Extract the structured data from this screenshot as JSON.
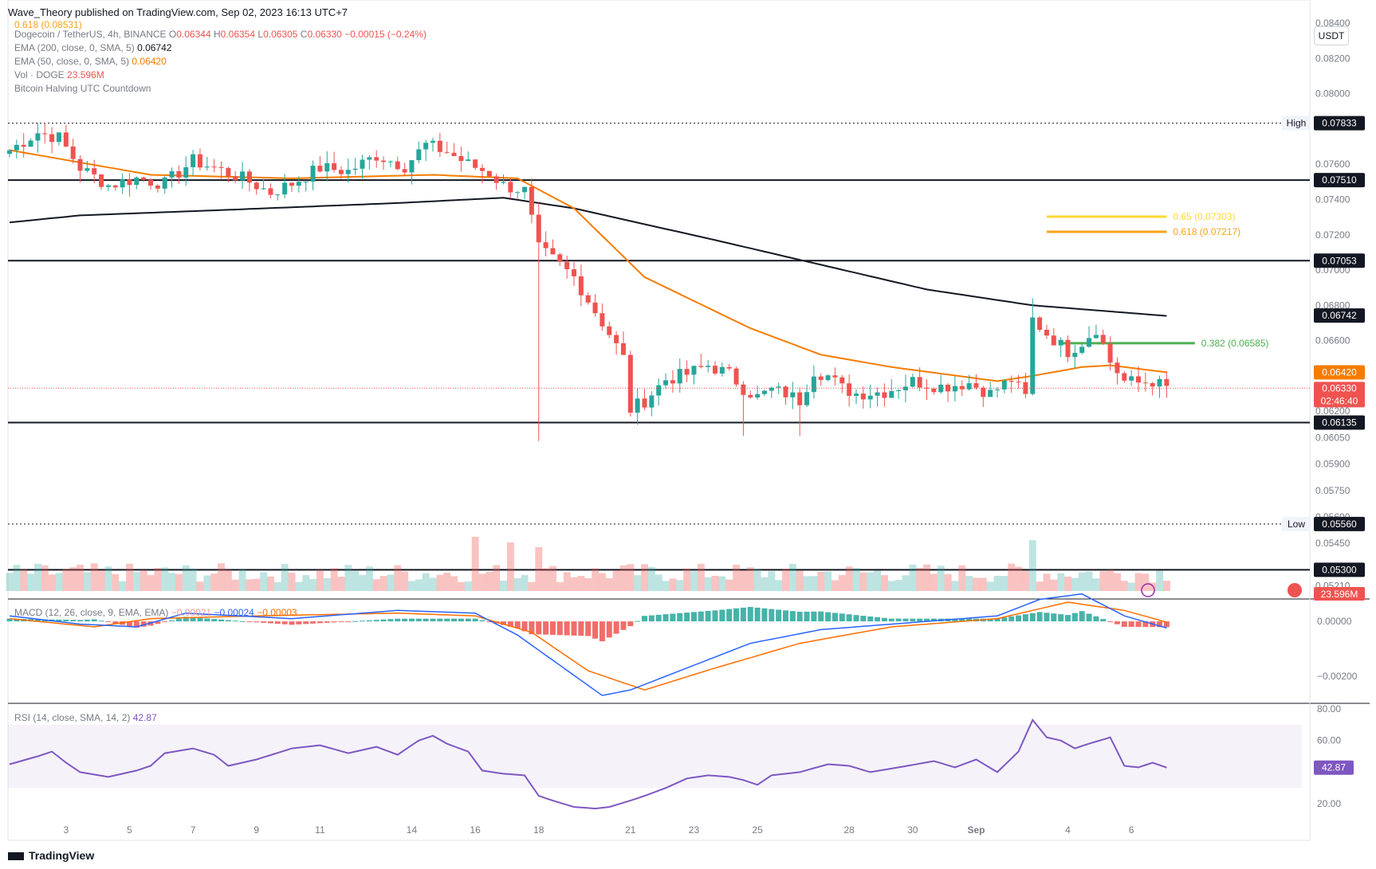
{
  "header": {
    "published": "Wave_Theory published on TradingView.com, Sep 02, 2023 16:13 UTC+7",
    "quote_currency": "USDT",
    "footer_brand": "TradingView"
  },
  "legend": {
    "fib_top": "0.618 (0.08531)",
    "symbol": "Dogecoin / TetherUS, 4h, BINANCE",
    "ohlc": {
      "o_label": "O",
      "o": "0.06344",
      "h_label": "H",
      "h": "0.06354",
      "l_label": "L",
      "l": "0.06305",
      "c_label": "C",
      "c": "0.06330",
      "chg": "−0.00015 (−0.24%)"
    },
    "ema200": {
      "label": "EMA (200, close, 0, SMA, 5)",
      "value": "0.06742"
    },
    "ema50": {
      "label": "EMA (50, close, 0, SMA, 5)",
      "value": "0.06420"
    },
    "vol": {
      "label": "Vol · DOGE",
      "value": "23.596M"
    },
    "halving": "Bitcoin Halving UTC Countdown"
  },
  "colors": {
    "up": "#26a69a",
    "down": "#ef5350",
    "ema50": "#f57c00",
    "ema200": "#131722",
    "fib382": "#4caf50",
    "fib618": "#f7a21b",
    "fib65": "#fdd835",
    "rsi": "#7e57c2",
    "macd": "#2962ff",
    "signal": "#ff6d00"
  },
  "chart_data": [
    {
      "type": "candlestick",
      "title": "Dogecoin / TetherUS, 4h, BINANCE",
      "x_tick_labels": [
        "3",
        "5",
        "7",
        "9",
        "11",
        "14",
        "16",
        "18",
        "21",
        "23",
        "25",
        "28",
        "30",
        "Sep",
        "4",
        "6"
      ],
      "y_tick_labels": [
        "0.08400",
        "0.08200",
        "0.08000",
        "0.07600",
        "0.07400",
        "0.07200",
        "0.07000",
        "0.06800",
        "0.06600",
        "0.06200",
        "0.06050",
        "0.05900",
        "0.05750",
        "0.05600",
        "0.05450",
        "0.05300",
        "0.05210"
      ],
      "ylim": [
        0.0518,
        0.0845
      ],
      "price_keypoints": [
        [
          0,
          0.0768
        ],
        [
          4,
          0.0778
        ],
        [
          7,
          0.0775
        ],
        [
          10,
          0.0758
        ],
        [
          14,
          0.0748
        ],
        [
          18,
          0.0752
        ],
        [
          22,
          0.0749
        ],
        [
          26,
          0.0762
        ],
        [
          29,
          0.0758
        ],
        [
          33,
          0.0752
        ],
        [
          37,
          0.0744
        ],
        [
          40,
          0.0749
        ],
        [
          44,
          0.0758
        ],
        [
          48,
          0.0756
        ],
        [
          52,
          0.0765
        ],
        [
          56,
          0.0759
        ],
        [
          59,
          0.0771
        ],
        [
          62,
          0.0767
        ],
        [
          65,
          0.076
        ],
        [
          68,
          0.0755
        ],
        [
          70,
          0.0748
        ],
        [
          73,
          0.0745
        ],
        [
          75,
          0.0712
        ],
        [
          77,
          0.0706
        ],
        [
          80,
          0.0696
        ],
        [
          82,
          0.0683
        ],
        [
          85,
          0.0664
        ],
        [
          87,
          0.065
        ],
        [
          88,
          0.0621
        ],
        [
          90,
          0.0626
        ],
        [
          93,
          0.0638
        ],
        [
          96,
          0.0641
        ],
        [
          99,
          0.0646
        ],
        [
          102,
          0.0641
        ],
        [
          104,
          0.0633
        ],
        [
          106,
          0.0628
        ],
        [
          108,
          0.0632
        ],
        [
          110,
          0.063
        ],
        [
          112,
          0.0626
        ],
        [
          114,
          0.0643
        ],
        [
          116,
          0.064
        ],
        [
          118,
          0.0633
        ],
        [
          120,
          0.063
        ],
        [
          124,
          0.0631
        ],
        [
          128,
          0.0637
        ],
        [
          132,
          0.0634
        ],
        [
          136,
          0.0636
        ],
        [
          139,
          0.063
        ],
        [
          142,
          0.0638
        ],
        [
          144,
          0.0628
        ],
        [
          145,
          0.0672
        ],
        [
          147,
          0.0664
        ],
        [
          150,
          0.0654
        ],
        [
          152,
          0.0659
        ],
        [
          154,
          0.0667
        ],
        [
          156,
          0.0648
        ],
        [
          158,
          0.0637
        ],
        [
          160,
          0.0636
        ],
        [
          162,
          0.0637
        ],
        [
          164,
          0.0633
        ]
      ],
      "ema50_keypoints": [
        [
          0,
          0.0768
        ],
        [
          20,
          0.0754
        ],
        [
          40,
          0.0752
        ],
        [
          60,
          0.0754
        ],
        [
          72,
          0.0752
        ],
        [
          80,
          0.0735
        ],
        [
          90,
          0.0696
        ],
        [
          105,
          0.0667
        ],
        [
          115,
          0.0652
        ],
        [
          125,
          0.0645
        ],
        [
          140,
          0.0637
        ],
        [
          145,
          0.064
        ],
        [
          152,
          0.0645
        ],
        [
          156,
          0.0646
        ],
        [
          164,
          0.0642
        ]
      ],
      "ema200_keypoints": [
        [
          0,
          0.0727
        ],
        [
          10,
          0.0731
        ],
        [
          30,
          0.0734
        ],
        [
          55,
          0.0738
        ],
        [
          70,
          0.0741
        ],
        [
          80,
          0.0735
        ],
        [
          100,
          0.0717
        ],
        [
          130,
          0.0689
        ],
        [
          145,
          0.068
        ],
        [
          164,
          0.0674
        ]
      ],
      "levels": [
        {
          "label": "High",
          "value": 0.07833,
          "text": "0.07833",
          "style": "dotted"
        },
        {
          "value": 0.0751,
          "text": "0.07510",
          "style": "solid"
        },
        {
          "value": 0.07053,
          "text": "0.07053",
          "style": "solid"
        },
        {
          "value": 0.06135,
          "text": "0.06135",
          "style": "solid"
        },
        {
          "label": "Low",
          "value": 0.0556,
          "text": "0.05560",
          "style": "dotted"
        },
        {
          "value": 0.053,
          "text": "0.05300",
          "style": "solid"
        }
      ],
      "fibs": [
        {
          "text": "0.65 (0.07303)",
          "value": 0.07303,
          "x_start": 147,
          "x_end": 164,
          "color": "#fdd835"
        },
        {
          "text": "0.618 (0.07217)",
          "value": 0.07217,
          "x_start": 147,
          "x_end": 164,
          "color": "#f7a21b"
        },
        {
          "text": "0.382 (0.06585)",
          "value": 0.06585,
          "x_start": 149,
          "x_end": 168,
          "color": "#4caf50"
        }
      ],
      "last_price": {
        "value": 0.0633,
        "text": "0.06330",
        "countdown": "02:46:40"
      },
      "ema200_tag": "0.06742",
      "ema50_tag": "0.06420",
      "volume_tag": "23.596M"
    },
    {
      "type": "line",
      "title": "MACD (12, 26, close, 9, EMA, EMA)",
      "values_text": {
        "hist": "−0.00021",
        "macd": "−0.00024",
        "signal": "−0.00003"
      },
      "y_tick_labels": [
        "0.00000",
        "−0.00200"
      ],
      "ylim": [
        -0.0029,
        0.0007
      ]
    },
    {
      "type": "line",
      "title": "RSI (14, close, SMA, 14, 2)",
      "value_text": "42.87",
      "y_tick_labels": [
        "80.00",
        "60.00",
        "20.00"
      ],
      "ylim": [
        12,
        82
      ],
      "band": [
        30,
        70
      ],
      "keypoints": [
        [
          0,
          45
        ],
        [
          4,
          50
        ],
        [
          6,
          53
        ],
        [
          8,
          46
        ],
        [
          10,
          40
        ],
        [
          14,
          37
        ],
        [
          18,
          41
        ],
        [
          20,
          44
        ],
        [
          22,
          52
        ],
        [
          26,
          55
        ],
        [
          29,
          51
        ],
        [
          31,
          44
        ],
        [
          35,
          48
        ],
        [
          40,
          55
        ],
        [
          44,
          57
        ],
        [
          48,
          52
        ],
        [
          52,
          56
        ],
        [
          55,
          51
        ],
        [
          58,
          60
        ],
        [
          60,
          63
        ],
        [
          62,
          58
        ],
        [
          65,
          53
        ],
        [
          67,
          41
        ],
        [
          70,
          39
        ],
        [
          73,
          38
        ],
        [
          75,
          25
        ],
        [
          77,
          22
        ],
        [
          80,
          18
        ],
        [
          83,
          17
        ],
        [
          85,
          18
        ],
        [
          88,
          22
        ],
        [
          90,
          25
        ],
        [
          93,
          30
        ],
        [
          96,
          36
        ],
        [
          99,
          38
        ],
        [
          102,
          37
        ],
        [
          104,
          35
        ],
        [
          106,
          32
        ],
        [
          108,
          38
        ],
        [
          112,
          40
        ],
        [
          116,
          45
        ],
        [
          119,
          44
        ],
        [
          122,
          40
        ],
        [
          126,
          43
        ],
        [
          131,
          47
        ],
        [
          134,
          43
        ],
        [
          137,
          48
        ],
        [
          140,
          40
        ],
        [
          143,
          53
        ],
        [
          145,
          73
        ],
        [
          147,
          62
        ],
        [
          149,
          60
        ],
        [
          151,
          55
        ],
        [
          153,
          58
        ],
        [
          156,
          62
        ],
        [
          158,
          44
        ],
        [
          160,
          43
        ],
        [
          162,
          46
        ],
        [
          164,
          42.87
        ]
      ]
    }
  ]
}
